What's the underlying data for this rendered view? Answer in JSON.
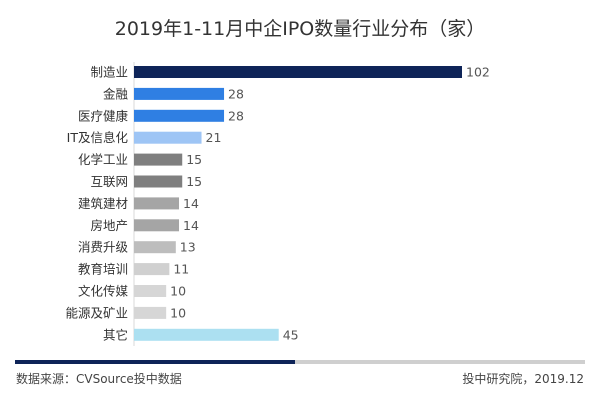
{
  "chart_data": {
    "type": "bar",
    "orientation": "horizontal",
    "title": "2019年1-11月中企IPO数量行业分布（家）",
    "categories": [
      "制造业",
      "金融",
      "医疗健康",
      "IT及信息化",
      "化学工业",
      "互联网",
      "建筑建材",
      "房地产",
      "消费升级",
      "教育培训",
      "文化传媒",
      "能源及矿业",
      "其它"
    ],
    "values": [
      102,
      28,
      28,
      21,
      15,
      15,
      14,
      14,
      13,
      11,
      10,
      10,
      45
    ],
    "colors": [
      "#0e2458",
      "#2f7fe3",
      "#2f7fe3",
      "#9ec5f5",
      "#7f7f7f",
      "#7f7f7f",
      "#a5a5a5",
      "#a5a5a5",
      "#bdbdbd",
      "#d0d0d0",
      "#d6d6d6",
      "#d6d6d6",
      "#ace0f1"
    ],
    "xlim": [
      0,
      110
    ],
    "grid": false,
    "data_labels": true
  },
  "footer": {
    "source": "数据来源：CVSource投中数据",
    "credit": "投中研究院，2019.12"
  }
}
